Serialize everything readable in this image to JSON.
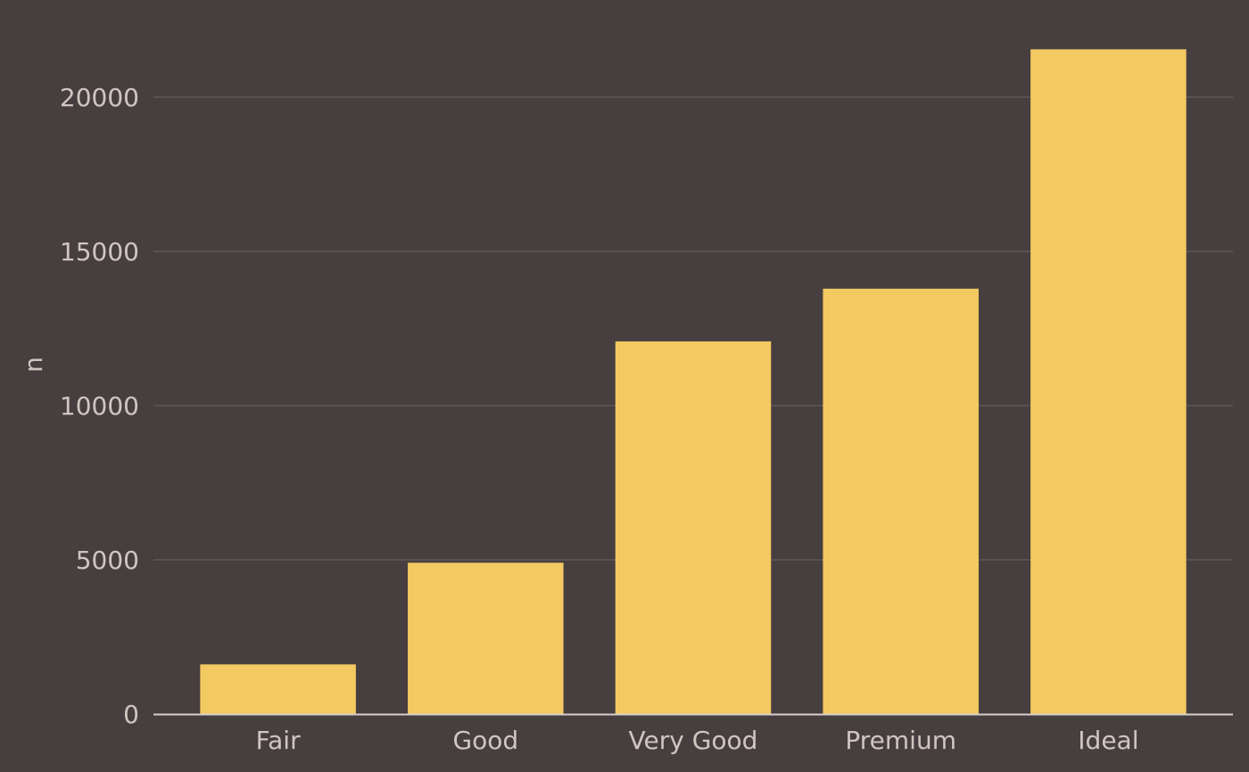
{
  "colors": {
    "background": "#473E3F",
    "bar": "#F3C961",
    "grid": "#6B6263",
    "axis_line": "#D8CFCB",
    "text": "#CFC6C2"
  },
  "chart_data": {
    "type": "bar",
    "categories": [
      "Fair",
      "Good",
      "Very Good",
      "Premium",
      "Ideal"
    ],
    "values": [
      1610,
      4906,
      12082,
      13791,
      21551
    ],
    "title": "",
    "xlabel": "",
    "ylabel": "n",
    "ylim": [
      0,
      22000
    ],
    "yticks": [
      0,
      5000,
      10000,
      15000,
      20000
    ],
    "grid": true,
    "legend": "none"
  }
}
